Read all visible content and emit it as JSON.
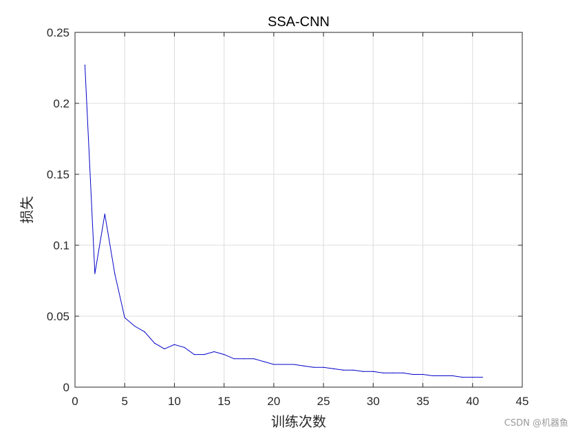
{
  "chart_data": {
    "type": "line",
    "title": "SSA-CNN",
    "xlabel": "训练次数",
    "ylabel": "损失",
    "xlim": [
      0,
      45
    ],
    "ylim": [
      0,
      0.25
    ],
    "xticks": [
      0,
      5,
      10,
      15,
      20,
      25,
      30,
      35,
      40,
      45
    ],
    "xtick_labels": [
      "0",
      "5",
      "10",
      "15",
      "20",
      "25",
      "30",
      "35",
      "40",
      "45"
    ],
    "yticks": [
      0,
      0.05,
      0.1,
      0.15,
      0.2,
      0.25
    ],
    "ytick_labels": [
      "0",
      "0.05",
      "0.1",
      "0.15",
      "0.2",
      "0.25"
    ],
    "grid": true,
    "series": [
      {
        "color": "#0000c8",
        "x": [
          1,
          2,
          3,
          4,
          5,
          6,
          7,
          8,
          9,
          10,
          11,
          12,
          13,
          14,
          15,
          16,
          17,
          18,
          19,
          20,
          21,
          22,
          23,
          24,
          25,
          26,
          27,
          28,
          29,
          30,
          31,
          32,
          33,
          34,
          35,
          36,
          37,
          38,
          39,
          40,
          41
        ],
        "y": [
          0.227,
          0.08,
          0.122,
          0.08,
          0.049,
          0.043,
          0.039,
          0.031,
          0.027,
          0.03,
          0.028,
          0.023,
          0.023,
          0.025,
          0.023,
          0.02,
          0.02,
          0.02,
          0.018,
          0.016,
          0.016,
          0.016,
          0.015,
          0.014,
          0.014,
          0.013,
          0.012,
          0.012,
          0.011,
          0.011,
          0.01,
          0.01,
          0.01,
          0.009,
          0.009,
          0.008,
          0.008,
          0.008,
          0.007,
          0.007,
          0.007
        ]
      }
    ]
  },
  "watermark": "CSDN @机器鱼"
}
